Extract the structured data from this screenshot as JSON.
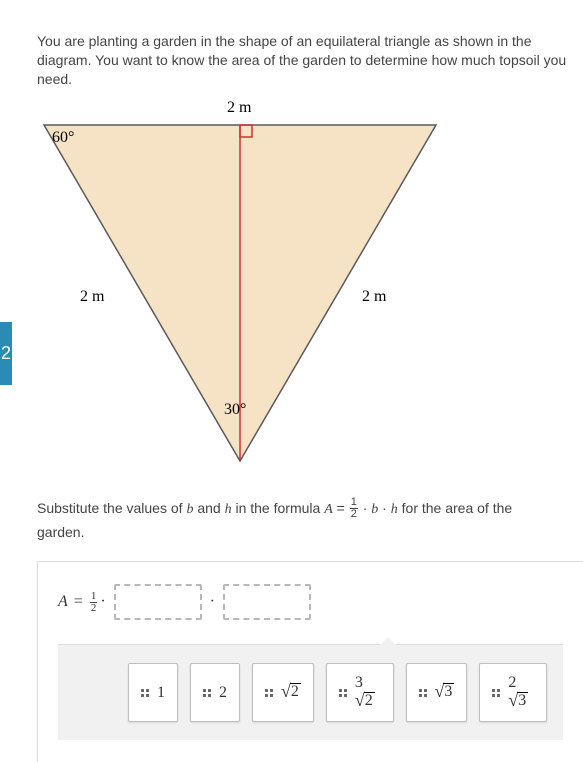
{
  "problem": {
    "text": "You are planting a garden in the shape of an equilateral triangle as shown in the diagram. You want to know the area of the garden to determine how much topsoil you need."
  },
  "diagram": {
    "top_label": "2 m",
    "left_side_label": "2 m",
    "right_side_label": "2 m",
    "top_left_angle": "60°",
    "bottom_angle": "30°",
    "fill_color": "#f6e3c5",
    "stroke_color": "#5a5a5a",
    "altitude_color": "#d03030"
  },
  "side_tab": {
    "label": "2",
    "bg": "#2a8bb5"
  },
  "instruction": {
    "pre": "Substitute the values of ",
    "var_b": "b",
    "mid1": " and ",
    "var_h": "h",
    "mid2": " in the formula ",
    "formula_A": "A",
    "equals": " = ",
    "frac_num": "1",
    "frac_den": "2",
    "dot": " · ",
    "formula_b": "b",
    "formula_h": "h",
    "post": " for the area of the garden."
  },
  "expression": {
    "A": "A",
    "equals": "=",
    "frac_num": "1",
    "frac_den": "2",
    "dot": "·"
  },
  "tiles": {
    "items": [
      {
        "kind": "plain",
        "text": "1"
      },
      {
        "kind": "plain",
        "text": "2"
      },
      {
        "kind": "sqrt",
        "coef": "",
        "rad": "2"
      },
      {
        "kind": "sqrt",
        "coef": "3",
        "rad": "2"
      },
      {
        "kind": "sqrt",
        "coef": "",
        "rad": "3"
      },
      {
        "kind": "sqrt",
        "coef": "2",
        "rad": "3"
      }
    ]
  },
  "colors": {
    "text": "#444444",
    "border": "#dcdcdc",
    "bank_bg": "#f1f1f1",
    "slot_border": "#b8b8b8"
  }
}
